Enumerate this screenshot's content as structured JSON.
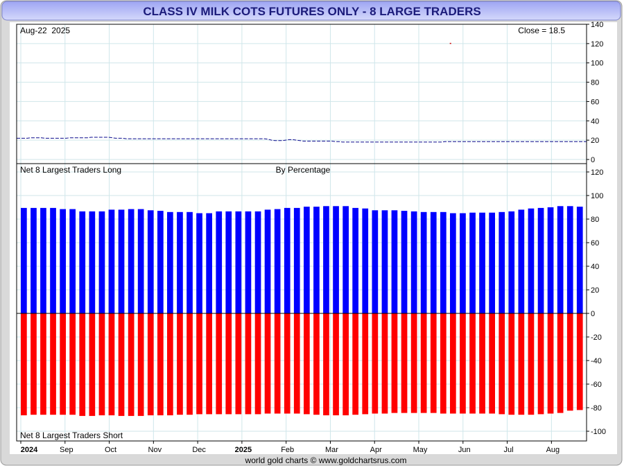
{
  "title": "CLASS IV MILK COTS FUTURES ONLY - 8 LARGE TRADERS",
  "footer": "world gold charts © www.goldchartsrus.com",
  "colors": {
    "title_bg_top": "#9ea5f3",
    "title_bg_bottom": "#d4d8fb",
    "title_text": "#1b1b7a",
    "frame_gray": "#d9d9d9",
    "grid": "#cfe6ea",
    "price_line": "#0a0a8c",
    "long_bar": "#0000ff",
    "short_bar": "#ff0000"
  },
  "chart_data": [
    {
      "type": "line",
      "panel": "price",
      "label_left": "Aug-22  2025",
      "label_right": "Close = 18.5",
      "ylim": [
        0,
        140
      ],
      "yticks": [
        "0",
        "20",
        "40",
        "60",
        "80",
        "100",
        "120",
        "140"
      ],
      "series": [
        {
          "values": [
            22,
            22,
            22,
            22,
            22.5,
            22.5,
            22.5,
            22.5,
            22,
            22,
            22,
            22,
            22,
            22,
            22,
            22.5,
            22.5,
            22.5,
            22.5,
            22.5,
            22.5,
            23,
            23,
            23,
            23,
            23,
            23,
            22.5,
            22,
            22,
            22,
            21.5,
            21.5,
            21.5,
            21.5,
            21.5,
            21.5,
            21.5,
            21.5,
            21.5,
            21.5,
            21.5,
            21.5,
            21.5,
            21.5,
            21.5,
            21.5,
            21.5,
            21.5,
            21.5,
            21.5,
            21.5,
            21.5,
            21.5,
            21.5,
            21.5,
            21.5,
            21.5,
            21.5,
            21.5,
            21.5,
            21.5,
            21.5,
            21.5,
            21.5,
            21.5,
            21.5,
            21.5,
            21.5,
            21.5,
            21.5,
            21,
            20,
            19.5,
            19.5,
            19.5,
            20,
            20.5,
            20.5,
            20,
            19.5,
            19,
            19,
            19,
            19,
            19,
            19,
            19,
            19,
            19,
            18.5,
            18.5,
            18,
            18,
            18,
            18,
            18,
            18,
            18,
            18,
            18,
            18,
            18,
            18,
            18,
            18,
            18,
            18,
            18,
            18,
            18,
            18,
            18,
            18,
            18,
            18,
            18,
            18,
            18,
            18,
            18,
            18.5,
            18.5,
            18.5,
            18.5,
            18.5,
            18.5,
            18.5,
            18.5,
            18.5,
            18.5,
            18.5,
            18.5,
            18.5,
            18.5,
            18.5,
            18.5,
            18.5,
            18.5,
            18.5,
            18.5,
            18.5,
            18.5,
            18.5,
            18.5,
            18.5,
            18.5,
            18.5,
            18.5,
            18.5,
            18.5,
            18.5,
            18.5,
            18.5,
            18.5,
            18.5,
            18.5,
            18.5,
            18.5,
            18.5,
            18.5,
            18.5
          ]
        }
      ],
      "outlier": {
        "index_fraction": 0.76,
        "value": 120
      }
    },
    {
      "type": "bar",
      "panel": "positions",
      "label_left_top": "Net 8 Largest Traders Long",
      "label_center_top": "By Percentage",
      "label_left_bottom": "Net 8 Largest Traders Short",
      "ylim": [
        -100,
        120
      ],
      "yticks": [
        "-100",
        "-80",
        "-60",
        "-40",
        "-20",
        "0",
        "20",
        "40",
        "60",
        "80",
        "100",
        "120"
      ],
      "series": [
        {
          "name": "Long",
          "values": [
            89.5,
            89.5,
            89.5,
            89.5,
            88.5,
            88.5,
            86.5,
            86.5,
            86.5,
            88,
            88,
            88.5,
            88.5,
            87.5,
            87,
            86,
            86,
            86,
            85,
            85,
            86.5,
            86.5,
            86.5,
            86.5,
            86.5,
            88,
            88.5,
            89.5,
            89.5,
            90.5,
            90.5,
            91,
            91,
            91,
            89.5,
            89,
            87.5,
            87.5,
            87.5,
            87,
            86.5,
            86,
            86,
            86,
            85,
            85,
            85.5,
            85.5,
            85.5,
            86,
            86.5,
            88,
            89,
            89.5,
            90,
            91,
            91,
            90.5
          ]
        },
        {
          "name": "Short",
          "values": [
            -86.5,
            -86,
            -86,
            -86,
            -86,
            -86,
            -87,
            -87,
            -86.5,
            -86.5,
            -87,
            -87,
            -87,
            -86.5,
            -86.5,
            -86.5,
            -86,
            -86,
            -85.5,
            -85.5,
            -85.5,
            -85.5,
            -85.5,
            -85.5,
            -85.5,
            -85,
            -85,
            -85,
            -85,
            -85.5,
            -86,
            -86.5,
            -86.5,
            -86.5,
            -86,
            -85.5,
            -85,
            -85,
            -84.5,
            -84.5,
            -84.5,
            -84.5,
            -84.5,
            -85,
            -85,
            -85,
            -85,
            -85,
            -85,
            -85.5,
            -86,
            -86,
            -86,
            -85.5,
            -85,
            -84.5,
            -82.5,
            -82
          ]
        }
      ]
    }
  ],
  "x_axis": {
    "labels": [
      "2024",
      "Sep",
      "Oct",
      "Nov",
      "Dec",
      "2025",
      "Feb",
      "Mar",
      "Apr",
      "May",
      "Jun",
      "Jul",
      "Aug"
    ],
    "bold": [
      true,
      false,
      false,
      false,
      false,
      true,
      false,
      false,
      false,
      false,
      false,
      false,
      false
    ],
    "months_from_start": [
      0,
      1,
      2,
      3,
      4,
      5,
      6,
      7,
      8,
      9,
      10,
      11,
      12
    ],
    "months_total": 12.7
  }
}
